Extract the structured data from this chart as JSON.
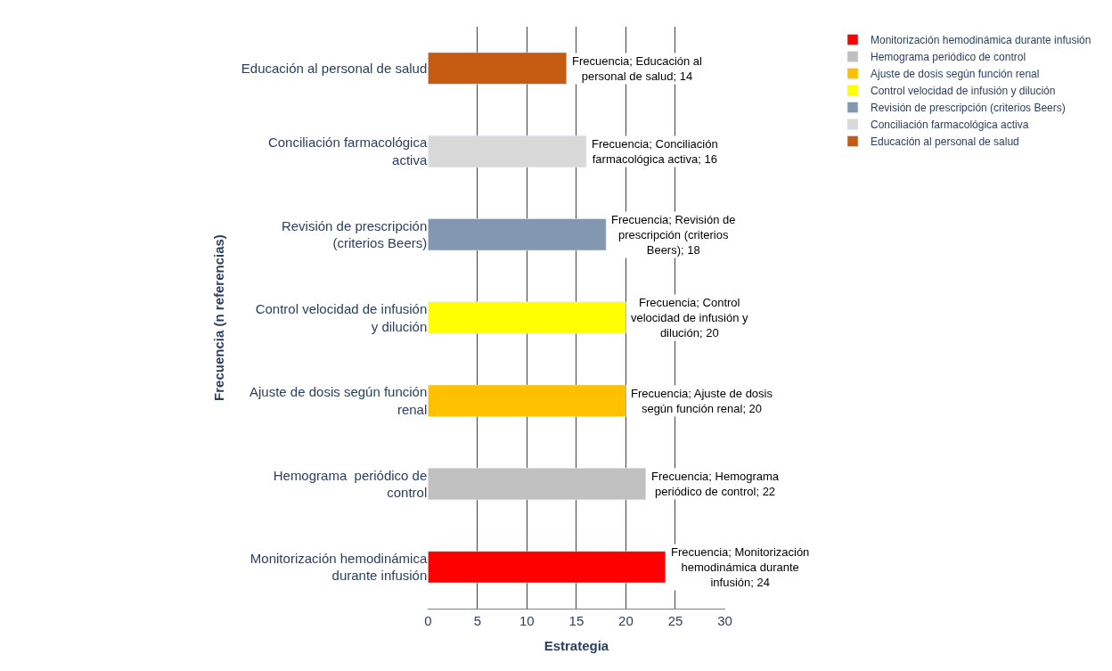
{
  "chart_data": {
    "type": "bar",
    "orientation": "horizontal",
    "xlabel": "Estrategia",
    "ylabel": "Frecuencia (n referencias)",
    "categories": [
      "Educación al personal de salud",
      "Conciliación farmacológica activa",
      "Revisión de prescripción (criterios Beers)",
      "Control velocidad de infusión y dilución",
      "Ajuste de dosis según función renal",
      "Hemograma  periódico de control",
      "Monitorización hemodinámica durante infusión"
    ],
    "series": [
      {
        "name": "Monitorización hemodinámica durante infusión",
        "color": "#ff0000",
        "values": [
          null,
          null,
          null,
          null,
          null,
          null,
          24
        ],
        "value_labels": [
          null,
          null,
          null,
          null,
          null,
          null,
          "Frecuencia; Monitorización hemodinámica durante infusión; 24"
        ]
      },
      {
        "name": "Hemograma periódico de control",
        "color": "#c0c0c0",
        "values": [
          null,
          null,
          null,
          null,
          null,
          22,
          null
        ],
        "value_labels": [
          null,
          null,
          null,
          null,
          null,
          "Frecuencia; Hemograma periódico de control; 22",
          null
        ]
      },
      {
        "name": "Ajuste de dosis según función renal",
        "color": "#ffc000",
        "values": [
          null,
          null,
          null,
          null,
          20,
          null,
          null
        ],
        "value_labels": [
          null,
          null,
          null,
          null,
          "Frecuencia; Ajuste de dosis según función renal; 20",
          null,
          null
        ]
      },
      {
        "name": "Control velocidad de infusión y dilución",
        "color": "#ffff00",
        "values": [
          null,
          null,
          null,
          20,
          null,
          null,
          null
        ],
        "value_labels": [
          null,
          null,
          null,
          "Frecuencia; Control velocidad de infusión y dilución; 20",
          null,
          null,
          null
        ]
      },
      {
        "name": "Revisión de prescripción (criterios Beers)",
        "color": "#8497b0",
        "values": [
          null,
          null,
          18,
          null,
          null,
          null,
          null
        ],
        "value_labels": [
          null,
          null,
          "Frecuencia; Revisión de prescripción (criterios Beers); 18",
          null,
          null,
          null,
          null
        ]
      },
      {
        "name": "Conciliación farmacológica activa",
        "color": "#d9d9d9",
        "values": [
          null,
          16,
          null,
          null,
          null,
          null,
          null
        ],
        "value_labels": [
          null,
          "Frecuencia; Conciliación farmacológica activa; 16",
          null,
          null,
          null,
          null,
          null
        ]
      },
      {
        "name": "Educación al personal de salud",
        "color": "#c55a11",
        "values": [
          14,
          null,
          null,
          null,
          null,
          null,
          null
        ],
        "value_labels": [
          "Frecuencia; Educación al personal de salud; 14",
          null,
          null,
          null,
          null,
          null,
          null
        ]
      }
    ],
    "xlim": [
      0,
      30
    ],
    "xticks": [
      0,
      5,
      10,
      15,
      20,
      25,
      30
    ],
    "grid": "x",
    "legend": "right"
  }
}
